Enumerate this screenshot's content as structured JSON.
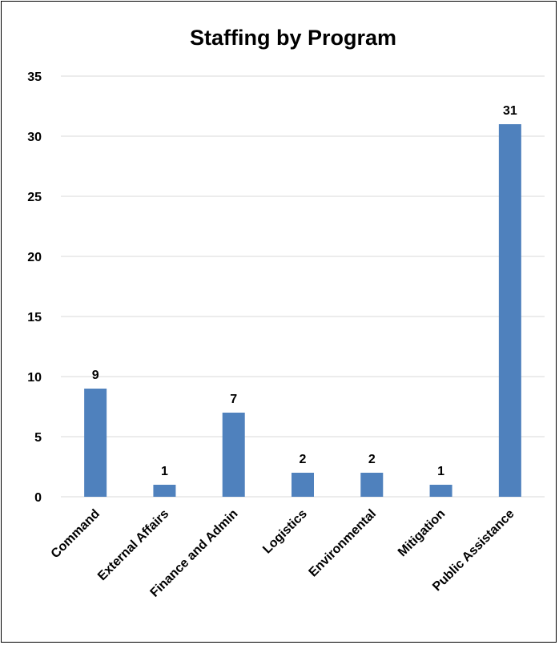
{
  "chart_data": {
    "type": "bar",
    "title": "Staffing by Program",
    "xlabel": "",
    "ylabel": "",
    "categories": [
      "Command",
      "External Affairs",
      "Finance and Admin",
      "Logistics",
      "Environmental",
      "Mitigation",
      "Public Assistance"
    ],
    "values": [
      9,
      1,
      7,
      2,
      2,
      1,
      31
    ],
    "ylim": [
      0,
      35
    ],
    "yticks": [
      0,
      5,
      10,
      15,
      20,
      25,
      30,
      35
    ],
    "grid": true,
    "legend": "none",
    "data_labels": true,
    "bar_color": "#4f81bd"
  }
}
